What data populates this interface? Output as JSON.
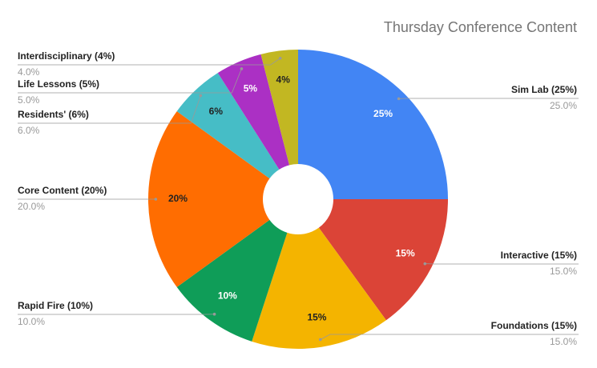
{
  "chart_data": {
    "type": "pie",
    "title": "Thursday Conference Content",
    "categories": [
      "Sim Lab (25%)",
      "Interactive (15%)",
      "Foundations (15%)",
      "Rapid Fire (10%)",
      "Core Content (20%)",
      "Residents' (6%)",
      "Life Lessons (5%)",
      "Interdisciplinary (4%)"
    ],
    "values": [
      25,
      15,
      15,
      10,
      20,
      6,
      5,
      4
    ],
    "value_labels": [
      "25%",
      "15%",
      "15%",
      "10%",
      "20%",
      "6%",
      "5%",
      "4%"
    ],
    "outer_value_labels": [
      "25.0%",
      "15.0%",
      "15.0%",
      "10.0%",
      "20.0%",
      "6.0%",
      "5.0%",
      "4.0%"
    ],
    "colors": [
      "#4285f4",
      "#db4437",
      "#f4b400",
      "#0f9d58",
      "#ff6d01",
      "#46bdc6",
      "#ab30c4",
      "#c2b722"
    ],
    "donut": true
  }
}
